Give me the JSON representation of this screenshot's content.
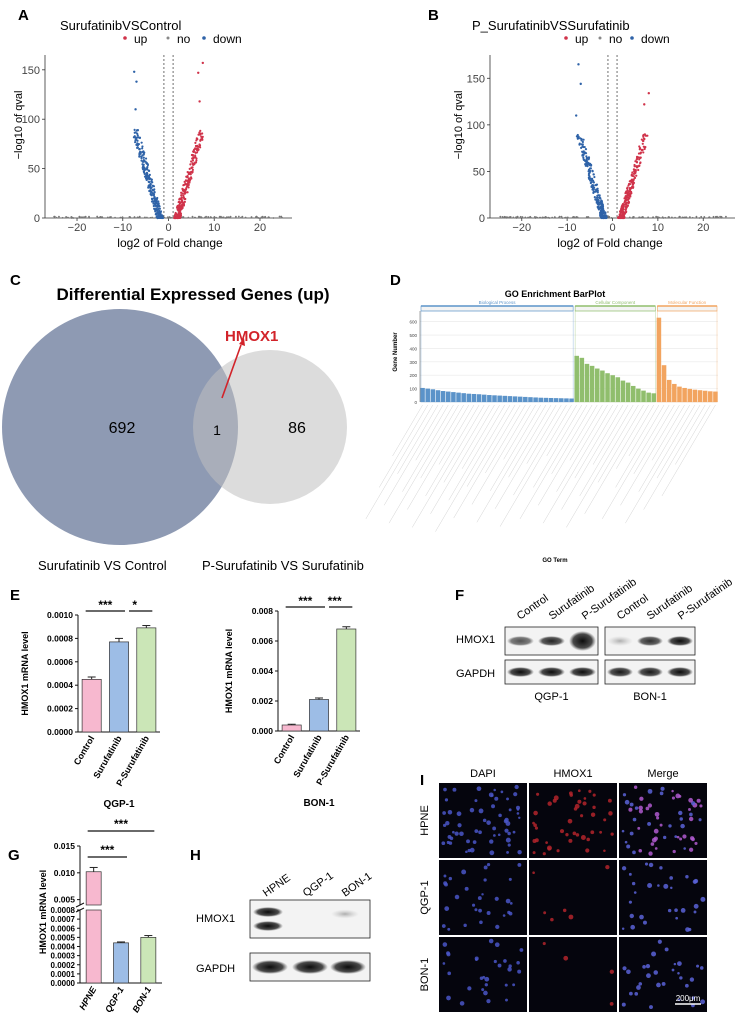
{
  "panels": {
    "A": {
      "letter": "A",
      "title": "SurufatinibVSControl",
      "legend": [
        "up",
        "no",
        "down"
      ],
      "xlabel": "log2 of Fold change",
      "ylabel": "−log10 of qval",
      "xticks": [
        "−20",
        "−10",
        "0",
        "10",
        "20"
      ],
      "yticks": [
        "0",
        "50",
        "100",
        "150"
      ],
      "chart_data": {
        "type": "scatter",
        "xlim": [
          -27,
          27
        ],
        "ylim": [
          0,
          165
        ],
        "threshold_x": [
          -1,
          1
        ],
        "up_max": [
          [
            7.5,
            157
          ],
          [
            6.5,
            147
          ],
          [
            6.8,
            118
          ]
        ],
        "down_max": [
          [
            -7.5,
            148
          ],
          [
            -7,
            138
          ],
          [
            -7.2,
            110
          ]
        ]
      }
    },
    "B": {
      "letter": "B",
      "title": "P_SurufatinibVSSurufatinib",
      "legend": [
        "up",
        "no",
        "down"
      ],
      "xlabel": "log2 of Fold change",
      "ylabel": "−log10 of qval",
      "xticks": [
        "−20",
        "−10",
        "0",
        "10",
        "20"
      ],
      "yticks": [
        "0",
        "50",
        "100",
        "150"
      ],
      "chart_data": {
        "type": "scatter",
        "xlim": [
          -27,
          27
        ],
        "ylim": [
          0,
          175
        ],
        "threshold_x": [
          -1,
          1
        ],
        "up_max": [
          [
            8,
            134
          ],
          [
            7,
            122
          ]
        ],
        "down_max": [
          [
            -7.5,
            165
          ],
          [
            -7,
            144
          ],
          [
            -8,
            110
          ]
        ]
      }
    },
    "C": {
      "letter": "C",
      "title": "Differential Expressed Genes (up)",
      "set1_label": "Surufatinib VS Control",
      "set2_label": "P-Surufatinib VS Surufatinib",
      "only1": "692",
      "both": "1",
      "only2": "86",
      "annotation": "HMOX1"
    },
    "D": {
      "letter": "D",
      "title": "GO Enrichment BarPlot",
      "ylabel": "Gene Number",
      "xlabel": "GO Term",
      "categories": [
        "Biological Process",
        "Cellular Component",
        "Molecular Function"
      ],
      "category_colors": [
        "#5b93c9",
        "#90be6d",
        "#f2a45f"
      ],
      "yticks": [
        "0",
        "100",
        "200",
        "300",
        "400",
        "500",
        "600"
      ],
      "chart_data": {
        "type": "bar",
        "ylim": [
          0,
          650
        ],
        "series": [
          {
            "name": "Biological Process",
            "values": [
              105,
              100,
              95,
              88,
              82,
              78,
              74,
              70,
              66,
              62,
              60,
              58,
              55,
              52,
              50,
              48,
              46,
              44,
              42,
              40,
              38,
              36,
              34,
              32,
              31,
              30,
              29,
              28,
              27,
              26
            ]
          },
          {
            "name": "Cellular Component",
            "values": [
              345,
              330,
              285,
              270,
              250,
              235,
              215,
              200,
              185,
              160,
              145,
              120,
              100,
              85,
              70,
              65
            ]
          },
          {
            "name": "Molecular Function",
            "values": [
              630,
              275,
              165,
              135,
              115,
              105,
              98,
              92,
              88,
              84,
              80,
              78
            ]
          }
        ]
      }
    },
    "E": {
      "letter": "E",
      "left": {
        "ylabel": "HMOX1 mRNA level",
        "cell_line": "QGP-1",
        "groups": [
          "Control",
          "Surufatinib",
          "P-Surufatinib"
        ],
        "yticks": [
          "0.0000",
          "0.0002",
          "0.0004",
          "0.0006",
          "0.0008",
          "0.0010"
        ],
        "sig": [
          "***",
          "*"
        ],
        "chart_data": {
          "type": "bar",
          "values": [
            0.00045,
            0.00077,
            0.00089
          ],
          "errors": [
            2e-05,
            3e-05,
            2e-05
          ],
          "ylim": [
            0,
            0.001
          ]
        }
      },
      "right": {
        "ylabel": "HMOX1 mRNA level",
        "cell_line": "BON-1",
        "groups": [
          "Control",
          "Surufatinib",
          "P-Surufatinib"
        ],
        "yticks": [
          "0.000",
          "0.002",
          "0.004",
          "0.006",
          "0.008"
        ],
        "sig": [
          "***",
          "***"
        ],
        "chart_data": {
          "type": "bar",
          "values": [
            0.0004,
            0.0021,
            0.0068
          ],
          "errors": [
            5e-05,
            0.0001,
            0.00015
          ],
          "ylim": [
            0,
            0.008
          ]
        }
      },
      "colors": [
        "#f7b8cf",
        "#9dbde6",
        "#cbe6b7"
      ]
    },
    "F": {
      "letter": "F",
      "lanes": [
        "Control",
        "Surufatinib",
        "P-Surufatinib",
        "Control",
        "Surufatinib",
        "P-Surufatinib"
      ],
      "rows": [
        "HMOX1",
        "GAPDH"
      ],
      "cell_lines": [
        "QGP-1",
        "BON-1"
      ]
    },
    "G": {
      "letter": "G",
      "ylabel": "HMOX1 mRNA level",
      "groups": [
        "HPNE",
        "QGP-1",
        "BON-1"
      ],
      "yticks_top": [
        "0.005",
        "0.010",
        "0.015"
      ],
      "yticks_bottom": [
        "0.0000",
        "0.0001",
        "0.0002",
        "0.0003",
        "0.0004",
        "0.0005",
        "0.0006",
        "0.0007",
        "0.0008"
      ],
      "sig": [
        "***",
        "***"
      ],
      "chart_data": {
        "type": "bar",
        "values": [
          0.0102,
          0.00044,
          0.0005
        ],
        "errors": [
          0.0008,
          1e-05,
          2e-05
        ],
        "colors": [
          "#f7b8cf",
          "#9dbde6",
          "#cbe6b7"
        ]
      }
    },
    "H": {
      "letter": "H",
      "lanes": [
        "HPNE",
        "QGP-1",
        "BON-1"
      ],
      "rows": [
        "HMOX1",
        "GAPDH"
      ]
    },
    "I": {
      "letter": "I",
      "columns": [
        "DAPI",
        "HMOX1",
        "Merge"
      ],
      "rows": [
        "HPNE",
        "QGP-1",
        "BON-1"
      ],
      "scale_bar": "200μm"
    }
  }
}
